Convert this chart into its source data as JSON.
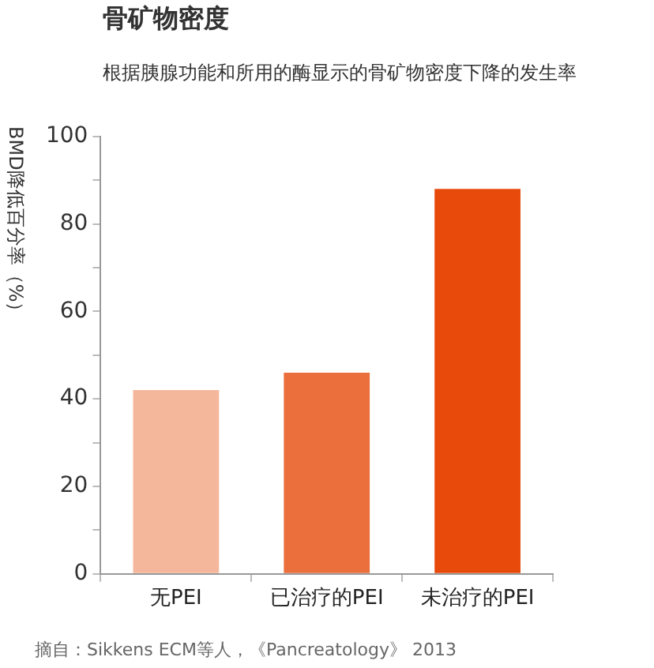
{
  "chart_data": {
    "type": "bar",
    "title": "骨矿物密度",
    "subtitle": "根据胰腺功能和所用的酶显示的骨矿物密度下降的发生率",
    "ylabel": "BMD降低百分率（%）",
    "categories": [
      "无PEI",
      "已治疗的PEI",
      "未治疗的PEI"
    ],
    "values": [
      42,
      46,
      88
    ],
    "colors": [
      "#f5b79b",
      "#eb6f3c",
      "#e84a0c"
    ],
    "ylim": [
      0,
      100
    ],
    "yticks": [
      0,
      {
        "value": 10,
        "label": null
      },
      20,
      {
        "value": 30,
        "label": null
      },
      40,
      {
        "value": 50,
        "label": null
      },
      60,
      {
        "value": 70,
        "label": null
      },
      80,
      {
        "value": 90,
        "label": null
      },
      100
    ],
    "grid": false,
    "legend": false,
    "annotations": [
      "摘自：Sikkens ECM等人，《Pancreatology》 2013"
    ]
  }
}
